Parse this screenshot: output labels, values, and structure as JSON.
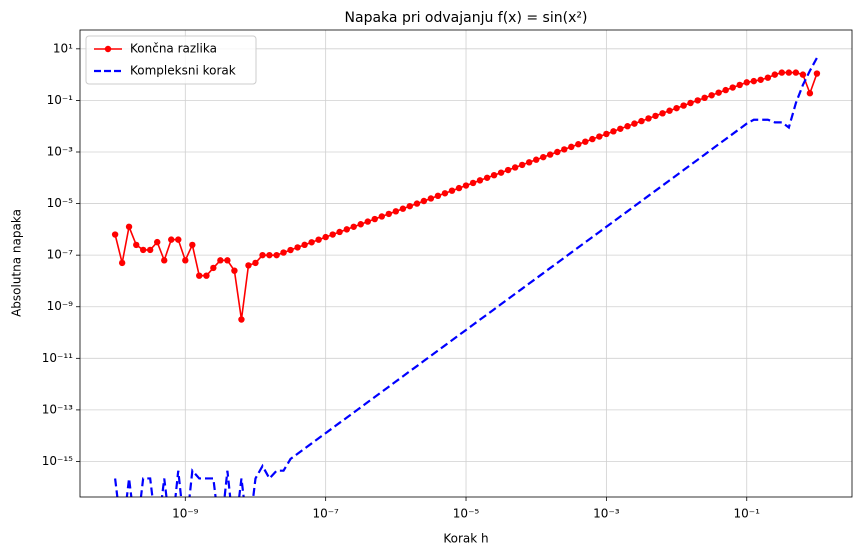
{
  "chart_data": {
    "type": "line",
    "title": "Napaka pri odvajanju f(x) = sin(x²)",
    "xlabel": "Korak h",
    "ylabel": "Absolutna napaka",
    "log_x": true,
    "log_y": true,
    "grid": true,
    "legend": "upper left",
    "xlim": [
      3.16e-11,
      3.16
    ],
    "ylim": [
      4.2e-17,
      53.7
    ],
    "xticks": [
      {
        "value": 1e-09,
        "label": "10⁻⁹"
      },
      {
        "value": 1e-07,
        "label": "10⁻⁷"
      },
      {
        "value": 1e-05,
        "label": "10⁻⁵"
      },
      {
        "value": 0.001,
        "label": "10⁻³"
      },
      {
        "value": 0.1,
        "label": "10⁻¹"
      }
    ],
    "yticks": [
      {
        "value": 10,
        "label": "10¹"
      },
      {
        "value": 0.1,
        "label": "10⁻¹"
      },
      {
        "value": 0.001,
        "label": "10⁻³"
      },
      {
        "value": 1e-05,
        "label": "10⁻⁵"
      },
      {
        "value": 1e-07,
        "label": "10⁻⁷"
      },
      {
        "value": 1e-09,
        "label": "10⁻⁹"
      },
      {
        "value": 1e-11,
        "label": "10⁻¹¹"
      },
      {
        "value": 1e-13,
        "label": "10⁻¹³"
      },
      {
        "value": 1e-15,
        "label": "10⁻¹⁵"
      }
    ],
    "x": [
      1e-10,
      1.26e-10,
      1.58e-10,
      2e-10,
      2.51e-10,
      3.16e-10,
      3.98e-10,
      5.01e-10,
      6.31e-10,
      7.94e-10,
      1e-09,
      1.26e-09,
      1.58e-09,
      2e-09,
      2.51e-09,
      3.16e-09,
      3.98e-09,
      5.01e-09,
      6.31e-09,
      7.94e-09,
      1e-08,
      1.26e-08,
      1.58e-08,
      2e-08,
      2.51e-08,
      3.16e-08,
      3.98e-08,
      5.01e-08,
      6.31e-08,
      7.94e-08,
      1e-07,
      1.26e-07,
      1.58e-07,
      2e-07,
      2.51e-07,
      3.16e-07,
      3.98e-07,
      5.01e-07,
      6.31e-07,
      7.94e-07,
      1e-06,
      1.26e-06,
      1.58e-06,
      2e-06,
      2.51e-06,
      3.16e-06,
      3.98e-06,
      5.01e-06,
      6.31e-06,
      7.94e-06,
      1e-05,
      1.26e-05,
      1.58e-05,
      2e-05,
      2.51e-05,
      3.16e-05,
      3.98e-05,
      5.01e-05,
      6.31e-05,
      7.94e-05,
      0.0001,
      0.000126,
      0.000158,
      0.0002,
      0.000251,
      0.000316,
      0.000398,
      0.000501,
      0.000631,
      0.000794,
      0.001,
      0.00126,
      0.00158,
      0.002,
      0.00251,
      0.00316,
      0.00398,
      0.00501,
      0.00631,
      0.00794,
      0.01,
      0.0126,
      0.0158,
      0.02,
      0.0251,
      0.0316,
      0.0398,
      0.0501,
      0.0631,
      0.0794,
      0.1,
      0.126,
      0.158,
      0.2,
      0.251,
      0.316,
      0.398,
      0.501,
      0.631,
      0.794,
      1
    ],
    "series": [
      {
        "name": "Končna razlika",
        "color": "#ff0000",
        "marker": "circle",
        "dash": "solid",
        "values": [
          6.3e-07,
          5e-08,
          1.26e-06,
          2.5e-07,
          1.6e-07,
          1.6e-07,
          3.2e-07,
          6.3e-08,
          4e-07,
          4e-07,
          6.3e-08,
          2.5e-07,
          1.6e-08,
          1.6e-08,
          3.2e-08,
          6.3e-08,
          6.3e-08,
          2.5e-08,
          3.2e-10,
          4e-08,
          5e-08,
          1e-07,
          1e-07,
          1e-07,
          1.26e-07,
          1.58e-07,
          2e-07,
          2.51e-07,
          3.16e-07,
          3.98e-07,
          5.01e-07,
          6.31e-07,
          7.94e-07,
          1e-06,
          1.26e-06,
          1.58e-06,
          2e-06,
          2.51e-06,
          3.16e-06,
          3.98e-06,
          5.01e-06,
          6.31e-06,
          7.94e-06,
          1e-05,
          1.26e-05,
          1.58e-05,
          2e-05,
          2.51e-05,
          3.16e-05,
          3.98e-05,
          5.01e-05,
          6.31e-05,
          7.94e-05,
          0.0001,
          0.000126,
          0.000158,
          0.0002,
          0.000251,
          0.000316,
          0.000398,
          0.000501,
          0.000631,
          0.000794,
          0.001,
          0.00126,
          0.00158,
          0.002,
          0.00251,
          0.00316,
          0.00398,
          0.00501,
          0.00631,
          0.00794,
          0.01,
          0.0126,
          0.0158,
          0.02,
          0.0251,
          0.0316,
          0.0398,
          0.0501,
          0.0631,
          0.0794,
          0.1,
          0.126,
          0.158,
          0.2,
          0.251,
          0.316,
          0.398,
          0.5,
          0.56,
          0.63,
          0.76,
          1.0,
          1.2,
          1.2,
          1.2,
          1.0,
          0.19,
          1.1
        ]
      },
      {
        "name": "Kompleksni korak",
        "color": "#0000ff",
        "marker": "none",
        "dash": "dashed",
        "values": [
          2.2e-16,
          0,
          2.2e-16,
          0,
          2.2e-16,
          2.2e-16,
          0,
          2.2e-16,
          0,
          4.4e-16,
          0,
          4.4e-16,
          2.2e-16,
          2.2e-16,
          2.2e-16,
          0,
          4.4e-16,
          0,
          2.2e-16,
          0,
          2.2e-16,
          6.7e-16,
          2.2e-16,
          4.4e-16,
          4.4e-16,
          1.26e-15,
          2e-15,
          3.16e-15,
          5.01e-15,
          7.94e-15,
          1.26e-14,
          2e-14,
          3.16e-14,
          5.01e-14,
          7.94e-14,
          1.26e-13,
          2e-13,
          3.16e-13,
          5.01e-13,
          7.94e-13,
          1.26e-12,
          2e-12,
          3.16e-12,
          5.01e-12,
          7.94e-12,
          1.26e-11,
          2e-11,
          3.16e-11,
          5.01e-11,
          7.94e-11,
          1.26e-10,
          2e-10,
          3.16e-10,
          5.01e-10,
          7.94e-10,
          1.26e-09,
          2e-09,
          3.16e-09,
          5.01e-09,
          7.94e-09,
          1.26e-08,
          2e-08,
          3.16e-08,
          5.01e-08,
          7.94e-08,
          1.26e-07,
          2e-07,
          3.16e-07,
          5.01e-07,
          7.94e-07,
          1.26e-06,
          2e-06,
          3.16e-06,
          5.01e-06,
          7.94e-06,
          1.26e-05,
          2e-05,
          3.16e-05,
          5.01e-05,
          7.94e-05,
          0.000126,
          0.0002,
          0.000316,
          0.000501,
          0.000794,
          0.00126,
          0.002,
          0.00316,
          0.00501,
          0.00794,
          0.0126,
          0.0178,
          0.0178,
          0.0178,
          0.0141,
          0.0141,
          0.0089,
          0.079,
          0.398,
          1.41,
          4.47
        ]
      }
    ]
  }
}
